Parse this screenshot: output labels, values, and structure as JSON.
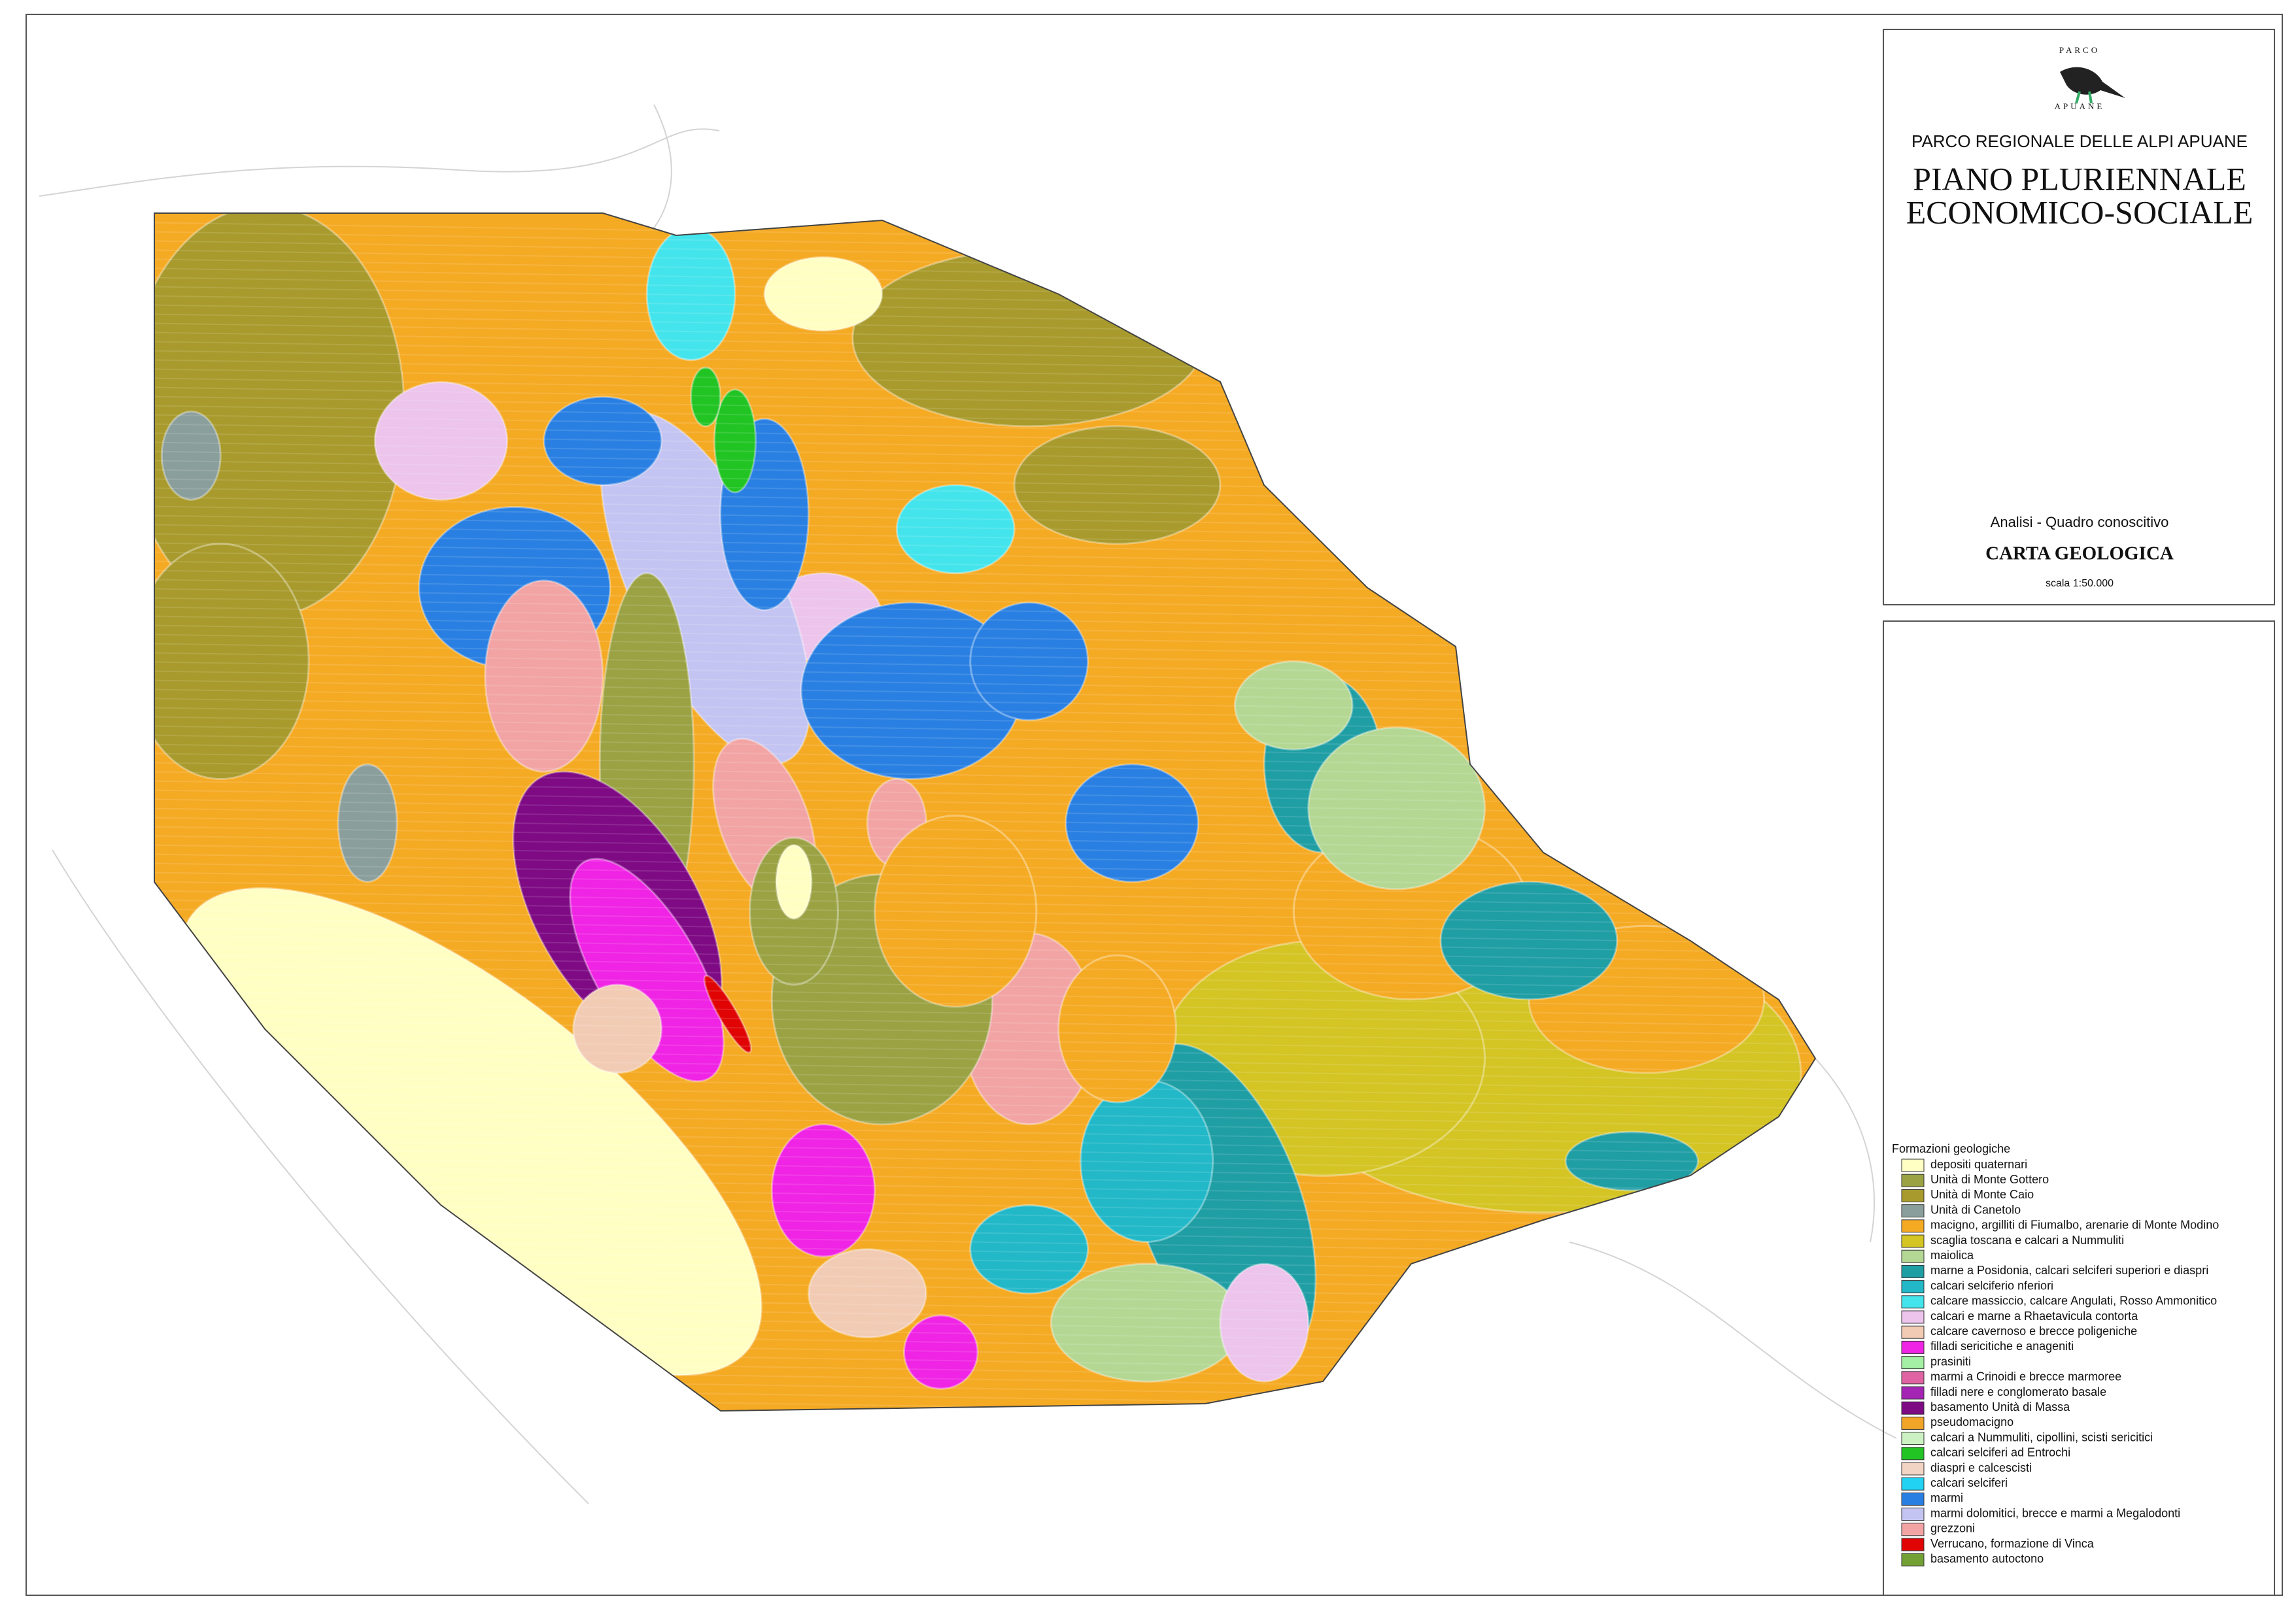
{
  "header": {
    "logo_top": "PARCO",
    "logo_bottom": "APUANE",
    "organization": "PARCO REGIONALE DELLE ALPI APUANE",
    "title_line1": "PIANO PLURIENNALE",
    "title_line2": "ECONOMICO-SOCIALE",
    "section": "Analisi - Quadro conoscitivo",
    "map_title": "CARTA GEOLOGICA",
    "scale": "scala 1:50.000"
  },
  "legend": {
    "title": "Formazioni geologiche",
    "items": [
      {
        "label": "depositi quaternari",
        "color": "#ffffc4"
      },
      {
        "label": "Unità di Monte Gottero",
        "color": "#9aa244"
      },
      {
        "label": "Unità di Monte Caio",
        "color": "#a89a2c"
      },
      {
        "label": "Unità di Canetolo",
        "color": "#8a9e9c"
      },
      {
        "label": "macigno, argilliti di Fiumalbo, arenarie di Monte Modino",
        "color": "#f5aa24"
      },
      {
        "label": "scaglia toscana e calcari a Nummuliti",
        "color": "#d4c424"
      },
      {
        "label": "maiolica",
        "color": "#b4d894"
      },
      {
        "label": "marne a Posidonia, calcari selciferi superiori e diaspri",
        "color": "#1f9ea4"
      },
      {
        "label": "calcari selciferio nferiori",
        "color": "#22b8c8"
      },
      {
        "label": "calcare massiccio, calcare Angulati, Rosso Ammonitico",
        "color": "#44e4ec"
      },
      {
        "label": "calcari e marne a Rhaetavicula contorta",
        "color": "#ecc4ec"
      },
      {
        "label": "calcare cavernoso e brecce poligeniche",
        "color": "#f2cbb4"
      },
      {
        "label": "filladi sericitiche e anageniti",
        "color": "#f024e4"
      },
      {
        "label": "prasiniti",
        "color": "#a4f0a4"
      },
      {
        "label": "marmi a Crinoidi e brecce marmoree",
        "color": "#e064a4"
      },
      {
        "label": "filladi nere e conglomerato basale",
        "color": "#a424b4"
      },
      {
        "label": "basamento Unità di Massa",
        "color": "#7e0a84"
      },
      {
        "label": "pseudomacigno",
        "color": "#f0a428"
      },
      {
        "label": "calcari a Nummuliti, cipollini, scisti sericitici",
        "color": "#ccf2c4"
      },
      {
        "label": "calcari selciferi ad Entrochi",
        "color": "#22c424"
      },
      {
        "label": "diaspri e calcescisti",
        "color": "#f2d4c4"
      },
      {
        "label": "calcari selciferi",
        "color": "#22d2f2"
      },
      {
        "label": "marmi",
        "color": "#2a80e2"
      },
      {
        "label": "marmi dolomitici, brecce e marmi a Megalodonti",
        "color": "#c4c4f2"
      },
      {
        "label": "grezzoni",
        "color": "#f2a4a4"
      },
      {
        "label": "Verrucano, formazione di Vinca",
        "color": "#e00404"
      },
      {
        "label": "basamento autoctono",
        "color": "#72a034"
      }
    ]
  }
}
